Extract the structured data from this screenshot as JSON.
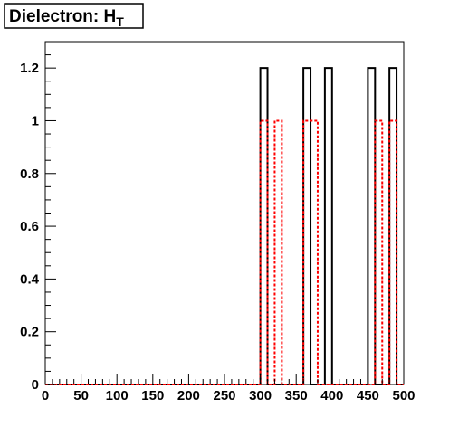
{
  "chart_data": {
    "type": "histogram",
    "title": "Dielectron: H",
    "title_subscript": "T",
    "xlabel": "",
    "ylabel": "",
    "xlim": [
      0,
      500
    ],
    "ylim": [
      0,
      1.2
    ],
    "bin_width": 10,
    "x_ticks": [
      0,
      50,
      100,
      150,
      200,
      250,
      300,
      350,
      400,
      450,
      500
    ],
    "y_ticks": [
      0,
      0.2,
      0.4,
      0.6,
      0.8,
      1,
      1.2
    ],
    "y_tick_labels": [
      "0",
      "0.2",
      "0.4",
      "0.6",
      "0.8",
      "1",
      "1.2"
    ],
    "grid": false,
    "legend": "none",
    "series": [
      {
        "style": "solid",
        "color": "#000000",
        "bins": [
          {
            "x0": 300,
            "x1": 310,
            "value": 1.2
          },
          {
            "x0": 360,
            "x1": 370,
            "value": 1.2
          },
          {
            "x0": 390,
            "x1": 400,
            "value": 1.2
          },
          {
            "x0": 450,
            "x1": 460,
            "value": 1.2
          },
          {
            "x0": 480,
            "x1": 490,
            "value": 1.2
          }
        ]
      },
      {
        "style": "dashed",
        "color": "#ff0000",
        "bins": [
          {
            "x0": 300,
            "x1": 310,
            "value": 1.0
          },
          {
            "x0": 320,
            "x1": 330,
            "value": 1.0
          },
          {
            "x0": 360,
            "x1": 370,
            "value": 1.0
          },
          {
            "x0": 370,
            "x1": 380,
            "value": 1.0
          },
          {
            "x0": 460,
            "x1": 470,
            "value": 1.0
          },
          {
            "x0": 480,
            "x1": 490,
            "value": 1.0
          }
        ]
      }
    ]
  }
}
